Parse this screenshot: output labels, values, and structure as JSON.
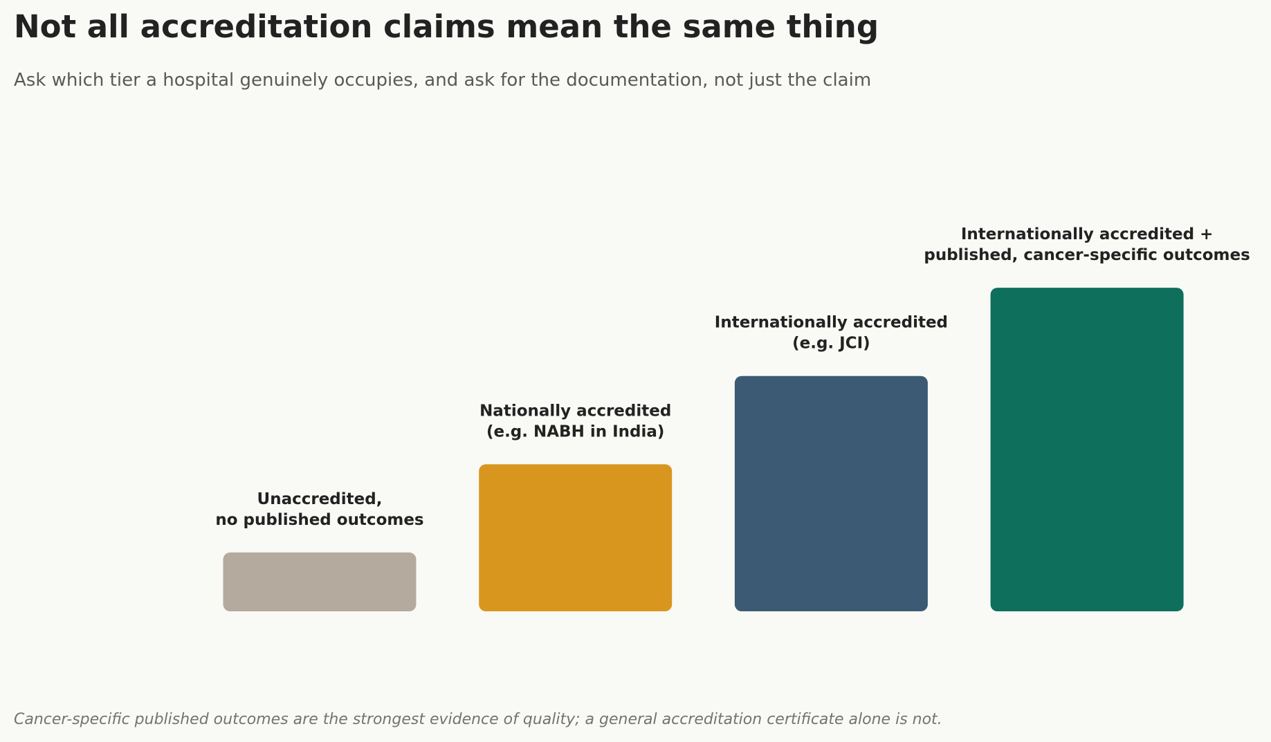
{
  "title": "Not all accreditation claims mean the same thing",
  "subtitle": "Ask which tier a hospital genuinely occupies, and ask for the documentation, not just the claim",
  "footnote": "Cancer-specific published outcomes are the strongest evidence of quality; a general accreditation certificate alone is not.",
  "chart_data": {
    "type": "bar",
    "title": "Not all accreditation claims mean the same thing",
    "subtitle": "Ask which tier a hospital genuinely occupies, and ask for the documentation, not just the claim",
    "xlabel": "",
    "ylabel": "",
    "grid": false,
    "categories": [
      [
        "Unaccredited,",
        "no published outcomes"
      ],
      [
        "Nationally accredited",
        "(e.g. NABH in India)"
      ],
      [
        "Internationally accredited",
        "(e.g. JCI)"
      ],
      [
        "Internationally accredited +",
        "published, cancer-specific outcomes"
      ]
    ],
    "values": [
      1,
      2.5,
      4,
      5.5
    ],
    "ylim": [
      0,
      7.5
    ],
    "colors": [
      "#b5aa9e",
      "#d9961f",
      "#3c5a73",
      "#0e6f5c"
    ]
  }
}
